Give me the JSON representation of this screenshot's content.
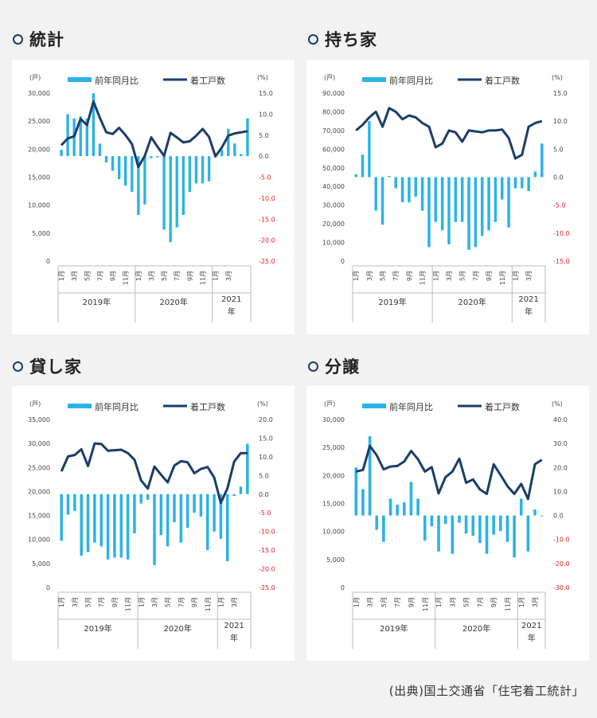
{
  "legend": {
    "bar_label": "前年同月比",
    "line_label": "着工戸数"
  },
  "units": {
    "left": "(戸)",
    "right": "(%)"
  },
  "x_months": [
    "1月",
    "3月",
    "5月",
    "7月",
    "9月",
    "11月",
    "1月",
    "3月",
    "5月",
    "7月",
    "9月",
    "11月",
    "1月",
    "3月"
  ],
  "years": [
    "2019年",
    "2020年",
    "2021",
    "年"
  ],
  "source": "(出典)国土交通省「住宅着工統計」",
  "colors": {
    "bar": "#2bb3e6",
    "line": "#1a3d6b",
    "negative": "#e02020"
  },
  "chart_data": [
    {
      "type": "bar+line",
      "title": "統計",
      "left_ylim": [
        0,
        30000
      ],
      "left_ticks": [
        "30,000",
        "25,000",
        "20,000",
        "15,000",
        "10,000",
        "5,000",
        "0"
      ],
      "right_ylim": [
        -25,
        15
      ],
      "right_ticks": [
        "15.0",
        "10.0",
        "5.0",
        "0.0",
        "-5.0",
        "-10.0",
        "-15.0",
        "-20.0",
        "-25.0"
      ],
      "bar_values": [
        1.5,
        10,
        9,
        9.5,
        9,
        15,
        3,
        -1.5,
        -3.5,
        -5.5,
        -7,
        -8.5,
        -14,
        -11.5,
        -0.5,
        -0.3,
        -17.5,
        -20.5,
        -17,
        -14,
        -8.5,
        -6.5,
        -6.5,
        -6,
        0.5,
        1.5,
        6.5,
        3,
        0.5,
        9
      ],
      "line_values": [
        20700,
        21900,
        22300,
        25400,
        24300,
        28500,
        25600,
        23000,
        22700,
        23800,
        22500,
        20900,
        16800,
        18800,
        22100,
        20400,
        18800,
        22900,
        22100,
        21200,
        21400,
        22400,
        23600,
        22200,
        18700,
        20300,
        22400,
        22800,
        23000,
        23200
      ]
    },
    {
      "type": "bar+line",
      "title": "持ち家",
      "left_ylim": [
        0,
        90000
      ],
      "left_ticks": [
        "90,000",
        "80,000",
        "70,000",
        "60,000",
        "50,000",
        "40,000",
        "30,000",
        "20,000",
        "10,000",
        "0"
      ],
      "right_ylim": [
        -15,
        15
      ],
      "right_ticks": [
        "15.0",
        "10.0",
        "5.0",
        "0.0",
        "-5.0",
        "-10.0",
        "-15.0"
      ],
      "bar_values": [
        0.5,
        4,
        10,
        -6,
        -8.5,
        0.2,
        -2,
        -4.5,
        -4.5,
        -3.5,
        -6,
        -12.5,
        -8,
        -9.5,
        -12,
        -8,
        -8,
        -13,
        -12.5,
        -10.5,
        -9.5,
        -8,
        -4,
        -9,
        -2,
        -2,
        -2.5,
        1,
        6
      ],
      "line_values": [
        70000,
        73000,
        77000,
        80000,
        72000,
        82000,
        80000,
        76000,
        78000,
        77000,
        74000,
        72000,
        61000,
        63000,
        70000,
        69000,
        64000,
        70000,
        69500,
        69000,
        70000,
        70000,
        70500,
        66000,
        55000,
        57000,
        72000,
        74000,
        75000
      ]
    },
    {
      "type": "bar+line",
      "title": "貸し家",
      "left_ylim": [
        0,
        35000
      ],
      "left_ticks": [
        "35,000",
        "30,000",
        "25,000",
        "20,000",
        "15,000",
        "10,000",
        "5,000",
        "0"
      ],
      "right_ylim": [
        -25,
        20
      ],
      "right_ticks": [
        "20.0",
        "15.0",
        "10.0",
        "5.0",
        "0.0",
        "-5.0",
        "-10.0",
        "-15.0",
        "-20.0",
        "-25.0"
      ],
      "bar_values": [
        -12.5,
        -5.5,
        -4.5,
        -16.5,
        -15.5,
        -13,
        -14,
        -17.5,
        -17,
        -17,
        -17.5,
        -10.5,
        -2.5,
        -1.5,
        -19,
        -11,
        -14,
        -7.5,
        -13,
        -9,
        -5,
        -6,
        -15,
        -10,
        -12,
        -18,
        -0.5,
        2,
        13.5
      ],
      "line_values": [
        24200,
        27300,
        27600,
        28800,
        25300,
        30000,
        29900,
        28500,
        28600,
        28700,
        28000,
        26600,
        22300,
        20600,
        25200,
        23500,
        21900,
        25400,
        26300,
        26100,
        23800,
        24700,
        25100,
        22900,
        17600,
        20700,
        26200,
        28000,
        28000
      ]
    },
    {
      "type": "bar+line",
      "title": "分譲",
      "left_ylim": [
        0,
        30000
      ],
      "left_ticks": [
        "30,000",
        "25,000",
        "20,000",
        "15,000",
        "10,000",
        "5,000",
        "0"
      ],
      "right_ylim": [
        -30,
        40
      ],
      "right_ticks": [
        "40.0",
        "30.0",
        "20.0",
        "10.0",
        "0.0",
        "-10.0",
        "-20.0",
        "-30.0"
      ],
      "bar_values": [
        20,
        11,
        33,
        -6,
        -11,
        7,
        4.5,
        5.5,
        14,
        7,
        -10.5,
        -4.5,
        -15,
        -3.5,
        -16,
        -3,
        -7.5,
        -8.5,
        -11.5,
        -16,
        -8,
        -6.5,
        -11,
        -17.5,
        7,
        -15,
        2.5,
        0
      ],
      "line_values": [
        20700,
        21000,
        25300,
        23600,
        21100,
        21600,
        21700,
        22500,
        24400,
        22900,
        20700,
        21500,
        16800,
        19700,
        20700,
        23000,
        18700,
        19300,
        17500,
        16700,
        22000,
        20100,
        18100,
        16700,
        18500,
        15800,
        22000,
        22800
      ]
    }
  ]
}
